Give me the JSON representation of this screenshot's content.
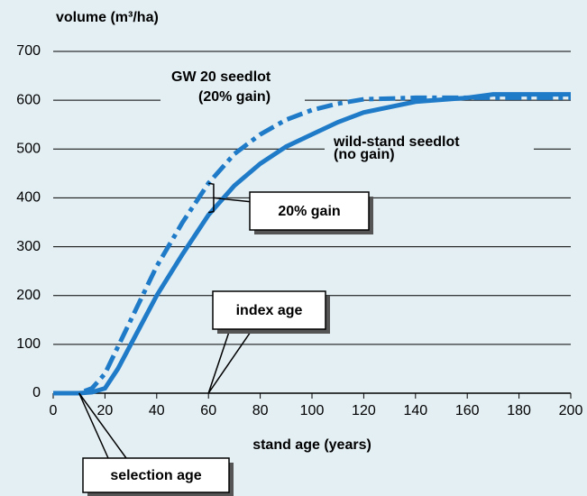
{
  "chart_data": {
    "type": "line",
    "ylabel": "volume (m³/ha)",
    "xlabel": "stand age (years)",
    "x": [
      0,
      10,
      15,
      20,
      25,
      30,
      40,
      50,
      60,
      70,
      80,
      90,
      100,
      110,
      120,
      140,
      160,
      170,
      200
    ],
    "series": [
      {
        "name": "wild-stand seedlot",
        "sub": "(no gain)",
        "color": "#1f7bc8",
        "style": "solid",
        "values": [
          0,
          0,
          2,
          10,
          50,
          100,
          200,
          285,
          365,
          425,
          470,
          505,
          530,
          555,
          575,
          597,
          605,
          612,
          612
        ]
      },
      {
        "name": "GW 20 seedlot",
        "sub": "(20% gain)",
        "color": "#1f7bc8",
        "style": "dashdot",
        "values": [
          0,
          0,
          10,
          40,
          95,
          150,
          260,
          350,
          430,
          490,
          530,
          560,
          580,
          593,
          602,
          605,
          605,
          605,
          605
        ]
      }
    ],
    "xlim": [
      0,
      200
    ],
    "xticks": [
      0,
      20,
      40,
      60,
      80,
      100,
      120,
      140,
      160,
      180,
      200
    ],
    "ylim": [
      0,
      700
    ],
    "yticks": [
      0,
      100,
      200,
      300,
      400,
      500,
      600,
      700
    ],
    "grid": true,
    "annotations": [
      "20% gain",
      "index age",
      "selection age"
    ]
  }
}
